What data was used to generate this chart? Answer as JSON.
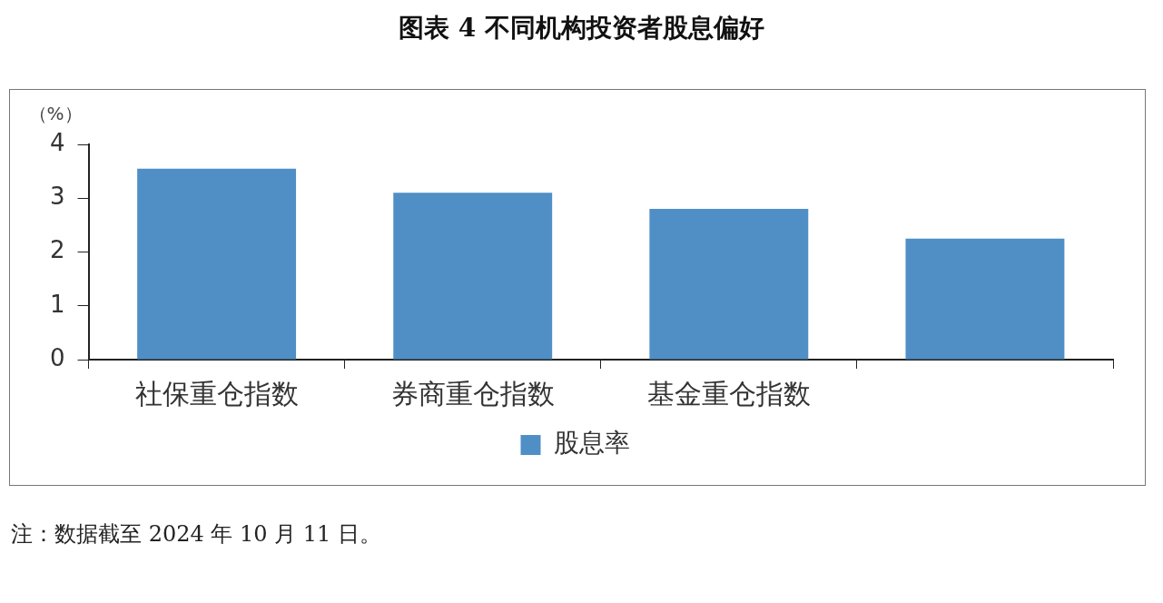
{
  "chart_data": {
    "type": "bar",
    "title": "图表 4  不同机构投资者股息偏好",
    "ylabel": "（%）",
    "categories": [
      "社保重仓指数",
      "券商重仓指数",
      "基金重仓指数",
      null
    ],
    "series": [
      {
        "name": "股息率",
        "color": "#4f8fc6",
        "values": [
          3.55,
          3.1,
          2.8,
          2.25
        ]
      }
    ],
    "ylim": [
      0,
      4
    ],
    "yticks": [
      0,
      1,
      2,
      3,
      4
    ],
    "grid": false,
    "legend": "bottom",
    "annotations": [
      "注：数据截至 2024 年 10 月 11 日。"
    ]
  }
}
